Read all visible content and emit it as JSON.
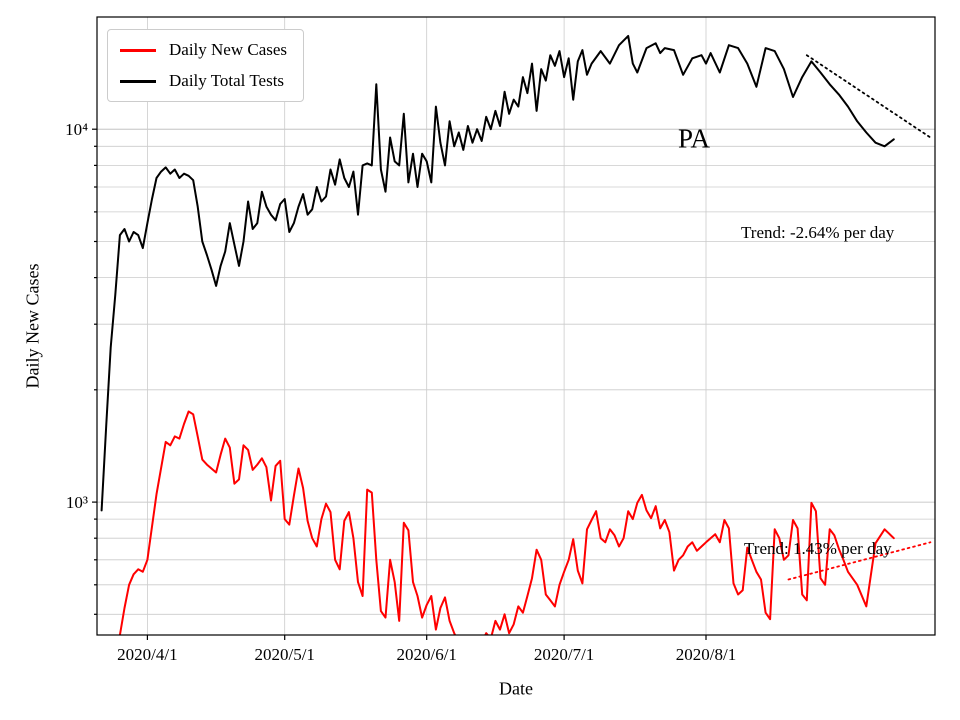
{
  "figure": {
    "annotation": "PA",
    "xlabel": "Date",
    "ylabel": "Daily New Cases"
  },
  "chart_data": {
    "type": "line",
    "yscale": "log",
    "title": "PA",
    "xlabel": "Date",
    "ylabel": "Daily New Cases",
    "x_epoch_day0": "2020-03-21",
    "xlim_days": [
      0,
      183
    ],
    "ylim": [
      440,
      20000
    ],
    "grid": true,
    "legend_position": "upper left",
    "xticks": [
      {
        "day": 11,
        "label": "2020/4/1"
      },
      {
        "day": 41,
        "label": "2020/5/1"
      },
      {
        "day": 72,
        "label": "2020/6/1"
      },
      {
        "day": 102,
        "label": "2020/7/1"
      },
      {
        "day": 133,
        "label": "2020/8/1"
      }
    ],
    "yticks_major": [
      {
        "value": 1000,
        "label": "10³"
      },
      {
        "value": 10000,
        "label": "10⁴"
      }
    ],
    "yticks_minor": [
      500,
      600,
      700,
      800,
      900,
      2000,
      3000,
      4000,
      5000,
      6000,
      7000,
      8000,
      9000
    ],
    "legend": {
      "entries": [
        {
          "label": "Daily New Cases",
          "color": "#ff0000"
        },
        {
          "label": "Daily Total Tests",
          "color": "#000000"
        }
      ]
    },
    "series": [
      {
        "name": "Daily New Cases",
        "color": "#ff0000",
        "days": [
          5,
          6,
          7,
          8,
          9,
          10,
          11,
          13,
          15,
          16,
          17,
          18,
          19,
          20,
          21,
          22,
          23,
          24,
          26,
          27,
          28,
          29,
          30,
          31,
          32,
          33,
          34,
          35,
          36,
          37,
          38,
          39,
          40,
          41,
          42,
          43,
          44,
          45,
          46,
          47,
          48,
          49,
          50,
          51,
          52,
          53,
          54,
          55,
          56,
          57,
          58,
          59,
          60,
          61,
          62,
          63,
          64,
          65,
          66,
          67,
          68,
          69,
          70,
          71,
          72,
          73,
          74,
          75,
          76,
          77,
          78,
          79,
          80,
          81,
          82,
          83,
          84,
          85,
          86,
          87,
          88,
          89,
          90,
          91,
          92,
          93,
          94,
          95,
          96,
          97,
          98,
          99,
          100,
          101,
          102,
          103,
          104,
          105,
          106,
          107,
          108,
          109,
          110,
          111,
          112,
          113,
          114,
          115,
          116,
          117,
          118,
          119,
          120,
          121,
          122,
          123,
          124,
          125,
          126,
          127,
          128,
          129,
          130,
          131,
          132,
          133,
          134,
          135,
          136,
          137,
          138,
          139,
          140,
          141,
          142,
          143,
          144,
          145,
          146,
          147,
          148,
          149,
          150,
          151,
          152,
          153,
          154,
          155,
          156,
          157,
          158,
          159,
          160,
          161,
          162,
          163,
          164,
          166,
          168,
          170,
          172,
          174
        ],
        "values": [
          440,
          520,
          600,
          640,
          660,
          650,
          700,
          1050,
          1450,
          1420,
          1500,
          1480,
          1620,
          1750,
          1720,
          1500,
          1300,
          1260,
          1200,
          1340,
          1480,
          1400,
          1120,
          1150,
          1420,
          1380,
          1220,
          1260,
          1310,
          1240,
          1010,
          1250,
          1290,
          900,
          870,
          1040,
          1230,
          1090,
          890,
          800,
          760,
          900,
          990,
          940,
          700,
          660,
          890,
          940,
          800,
          610,
          560,
          1080,
          1060,
          700,
          510,
          490,
          700,
          610,
          480,
          880,
          840,
          610,
          560,
          490,
          530,
          560,
          455,
          520,
          555,
          480,
          445,
          420,
          405,
          430,
          415,
          400,
          420,
          445,
          430,
          480,
          455,
          500,
          445,
          470,
          525,
          505,
          560,
          625,
          745,
          700,
          565,
          545,
          525,
          600,
          650,
          700,
          795,
          655,
          605,
          845,
          895,
          945,
          800,
          780,
          845,
          815,
          760,
          800,
          945,
          900,
          995,
          1045,
          950,
          905,
          975,
          850,
          895,
          830,
          655,
          700,
          720,
          760,
          780,
          740,
          760,
          780,
          800,
          820,
          780,
          895,
          850,
          605,
          565,
          580,
          755,
          700,
          650,
          620,
          505,
          485,
          845,
          800,
          700,
          720,
          895,
          850,
          565,
          545,
          995,
          945,
          625,
          600,
          845,
          815,
          750,
          700,
          650,
          600,
          525,
          775,
          845,
          800
        ]
      },
      {
        "name": "Daily Total Tests",
        "color": "#000000",
        "days": [
          1,
          2,
          3,
          4,
          5,
          6,
          7,
          8,
          9,
          10,
          11,
          12,
          13,
          14,
          15,
          16,
          17,
          18,
          19,
          20,
          21,
          22,
          23,
          24,
          25,
          26,
          27,
          28,
          29,
          30,
          31,
          32,
          33,
          34,
          35,
          36,
          37,
          38,
          39,
          40,
          41,
          42,
          43,
          44,
          45,
          46,
          47,
          48,
          49,
          50,
          51,
          52,
          53,
          54,
          55,
          56,
          57,
          58,
          59,
          60,
          61,
          62,
          63,
          64,
          65,
          66,
          67,
          68,
          69,
          70,
          71,
          72,
          73,
          74,
          75,
          76,
          77,
          78,
          79,
          80,
          81,
          82,
          83,
          84,
          85,
          86,
          87,
          88,
          89,
          90,
          91,
          92,
          93,
          94,
          95,
          96,
          97,
          98,
          99,
          100,
          101,
          102,
          103,
          104,
          105,
          106,
          107,
          108,
          110,
          112,
          114,
          116,
          117,
          118,
          120,
          122,
          123,
          124,
          126,
          128,
          130,
          132,
          133,
          134,
          136,
          138,
          140,
          142,
          144,
          146,
          148,
          150,
          152,
          154,
          156,
          158,
          160,
          162,
          164,
          166,
          168,
          170,
          172,
          174
        ],
        "values": [
          950,
          1600,
          2600,
          3600,
          5200,
          5400,
          5000,
          5300,
          5200,
          4800,
          5600,
          6500,
          7400,
          7700,
          7900,
          7600,
          7800,
          7400,
          7600,
          7500,
          7300,
          6200,
          5000,
          4600,
          4200,
          3800,
          4300,
          4700,
          5600,
          4900,
          4300,
          5000,
          6400,
          5400,
          5600,
          6800,
          6200,
          5900,
          5700,
          6300,
          6500,
          5300,
          5600,
          6200,
          6700,
          5900,
          6100,
          7000,
          6400,
          6600,
          7800,
          7100,
          8300,
          7400,
          7000,
          7700,
          5900,
          8000,
          8100,
          8000,
          13200,
          7800,
          6800,
          9500,
          8200,
          8000,
          11000,
          7200,
          8600,
          7000,
          8600,
          8200,
          7200,
          11500,
          9200,
          8000,
          10500,
          9000,
          9800,
          8800,
          10200,
          9200,
          10000,
          9300,
          10800,
          10000,
          11200,
          10200,
          12600,
          11000,
          12000,
          11500,
          13800,
          12500,
          15000,
          11200,
          14500,
          13500,
          15800,
          14800,
          16200,
          13800,
          15500,
          12000,
          15200,
          16300,
          14000,
          15000,
          16200,
          15000,
          16800,
          17800,
          15000,
          14200,
          16500,
          17000,
          16000,
          16500,
          16300,
          14000,
          15500,
          15800,
          15000,
          16000,
          14200,
          16800,
          16500,
          15000,
          13000,
          16500,
          16200,
          14500,
          12200,
          13800,
          15200,
          14200,
          13200,
          12400,
          11500,
          10500,
          9800,
          9200,
          9000,
          9400
        ]
      }
    ],
    "trends": [
      {
        "series": "Daily Total Tests",
        "label": "Trend: -2.64% per day",
        "rate_percent_per_day": -2.64,
        "color": "#000000",
        "start_day": 155,
        "end_day": 182,
        "start_value": 15800,
        "end_value": 9500
      },
      {
        "series": "Daily New Cases",
        "label": "Trend: 1.43% per day",
        "rate_percent_per_day": 1.43,
        "color": "#ff0000",
        "start_day": 151,
        "end_day": 182,
        "start_value": 620,
        "end_value": 780
      }
    ]
  }
}
